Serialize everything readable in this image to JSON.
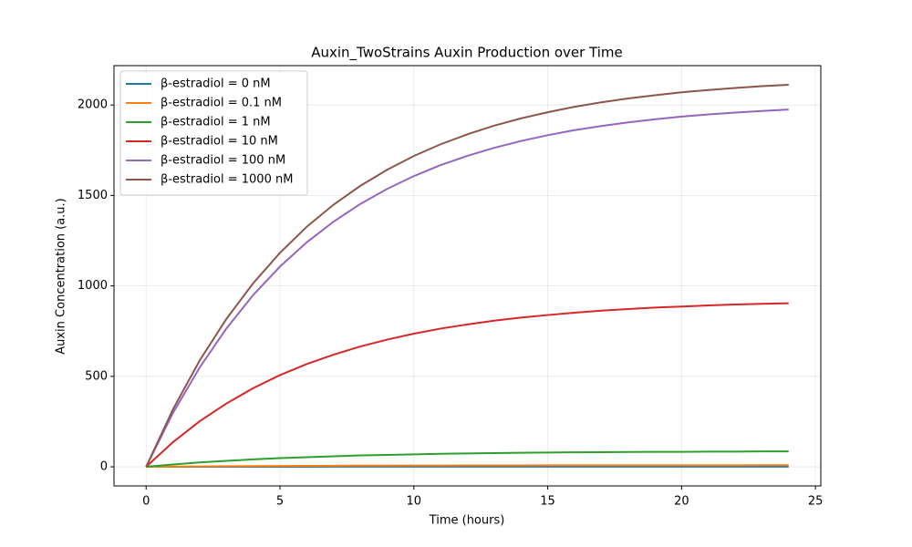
{
  "chart_data": {
    "type": "line",
    "title": "Auxin_TwoStrains Auxin Production over Time",
    "x_label": "Time (hours)",
    "y_label": "Auxin Concentration (a.u.)",
    "x": [
      0,
      1,
      2,
      3,
      4,
      5,
      6,
      7,
      8,
      9,
      10,
      11,
      12,
      13,
      14,
      15,
      16,
      17,
      18,
      19,
      20,
      21,
      22,
      23,
      24
    ],
    "series": [
      {
        "name": "β-estradiol = 0 nM",
        "color": "#1f77b4",
        "values": [
          0,
          0.13,
          0.24,
          0.34,
          0.42,
          0.49,
          0.55,
          0.6,
          0.65,
          0.68,
          0.72,
          0.74,
          0.77,
          0.79,
          0.8,
          0.82,
          0.83,
          0.84,
          0.85,
          0.86,
          0.86,
          0.87,
          0.87,
          0.88,
          0.88
        ]
      },
      {
        "name": "β-estradiol = 0.1 nM",
        "color": "#ff7f0e",
        "values": [
          0,
          1.3,
          2.4,
          3.4,
          4.2,
          4.9,
          5.5,
          6.0,
          6.5,
          6.8,
          7.2,
          7.4,
          7.7,
          7.9,
          8.0,
          8.2,
          8.3,
          8.4,
          8.5,
          8.6,
          8.6,
          8.7,
          8.7,
          8.8,
          8.8
        ]
      },
      {
        "name": "β-estradiol = 1 nM",
        "color": "#2ca02c",
        "values": [
          0,
          13,
          24,
          33,
          41,
          48,
          53,
          58,
          63,
          66,
          69,
          72,
          74,
          76,
          78,
          79,
          80,
          81,
          82,
          83,
          83,
          84,
          84,
          85,
          85
        ]
      },
      {
        "name": "β-estradiol = 10 nM",
        "color": "#d62728",
        "values": [
          0,
          136,
          252,
          350,
          435,
          507,
          568,
          620,
          665,
          703,
          736,
          764,
          787,
          808,
          825,
          839,
          852,
          863,
          872,
          880,
          886,
          892,
          897,
          901,
          904
        ]
      },
      {
        "name": "β-estradiol = 100 nM",
        "color": "#9467bd",
        "values": [
          0,
          297,
          549,
          765,
          950,
          1107,
          1241,
          1355,
          1453,
          1536,
          1607,
          1668,
          1719,
          1763,
          1801,
          1833,
          1861,
          1884,
          1904,
          1921,
          1936,
          1948,
          1958,
          1967,
          1975
        ]
      },
      {
        "name": "β-estradiol = 1000 nM",
        "color": "#8c564b",
        "values": [
          0,
          317,
          588,
          818,
          1015,
          1183,
          1327,
          1449,
          1553,
          1642,
          1718,
          1783,
          1838,
          1886,
          1926,
          1960,
          1990,
          2015,
          2036,
          2054,
          2070,
          2083,
          2094,
          2104,
          2112
        ]
      }
    ],
    "xlim": [
      -1.2,
      25.2
    ],
    "xticks": [
      0,
      5,
      10,
      15,
      20,
      25
    ],
    "ylim": [
      -105.6,
      2217.6
    ],
    "yticks": [
      0,
      500,
      1000,
      1500,
      2000
    ],
    "grid": true,
    "legend": "upper-left"
  }
}
